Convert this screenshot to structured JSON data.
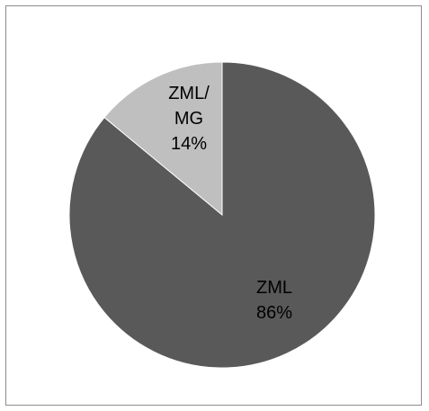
{
  "chart_data": {
    "type": "pie",
    "title": "",
    "slices": [
      {
        "label_lines": [
          "ZML/",
          "MG"
        ],
        "percent_label": "14%",
        "value": 14,
        "color": "#bfbfbf"
      },
      {
        "label_lines": [
          "ZML"
        ],
        "percent_label": "86%",
        "value": 86,
        "color": "#595959"
      }
    ],
    "start_angle_deg": 0,
    "direction": "counterclockwise",
    "legend": "none"
  }
}
